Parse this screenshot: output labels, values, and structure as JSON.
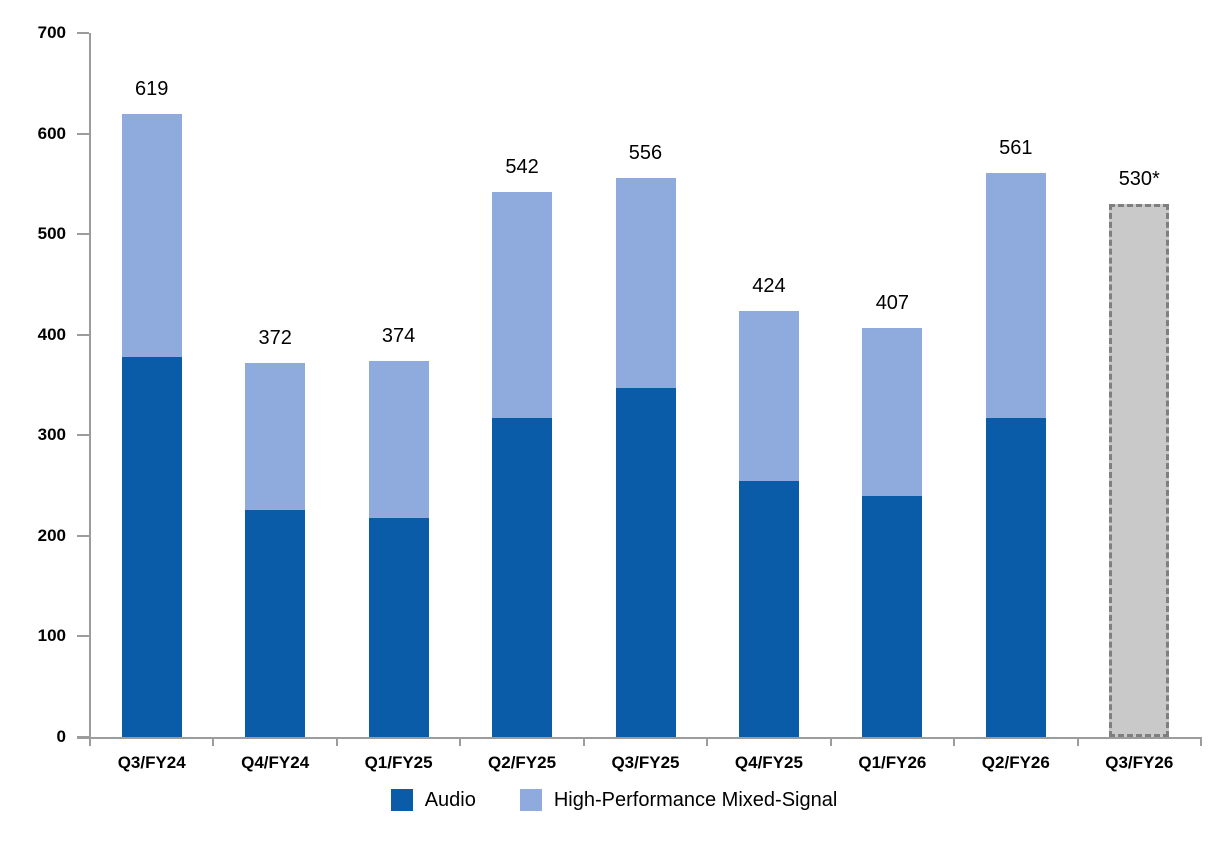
{
  "chart_data": {
    "type": "bar",
    "stacked": true,
    "title": "",
    "xlabel": "",
    "ylabel": "",
    "categories": [
      "Q3/FY24",
      "Q4/FY24",
      "Q1/FY25",
      "Q2/FY25",
      "Q3/FY25",
      "Q4/FY25",
      "Q1/FY26",
      "Q2/FY26",
      "Q3/FY26"
    ],
    "series": [
      {
        "name": "Audio",
        "color": "#0b5ca8",
        "values": [
          378,
          226,
          218,
          317,
          347,
          255,
          240,
          317,
          null
        ]
      },
      {
        "name": "High-Performance Mixed-Signal",
        "color": "#8faadc",
        "values": [
          241,
          146,
          156,
          225,
          209,
          169,
          167,
          244,
          null
        ]
      }
    ],
    "totals_labels": [
      "619",
      "372",
      "374",
      "542",
      "556",
      "424",
      "407",
      "561",
      "530*"
    ],
    "forecast": {
      "category": "Q3/FY26",
      "total": 530,
      "label": "530*",
      "fill": "#c9c9c9",
      "border": "#7f7f7f"
    },
    "ylim": [
      0,
      700
    ],
    "ytick_interval": 100,
    "grid": false,
    "legend_position": "bottom",
    "axis_color": "#9c9c9c"
  }
}
